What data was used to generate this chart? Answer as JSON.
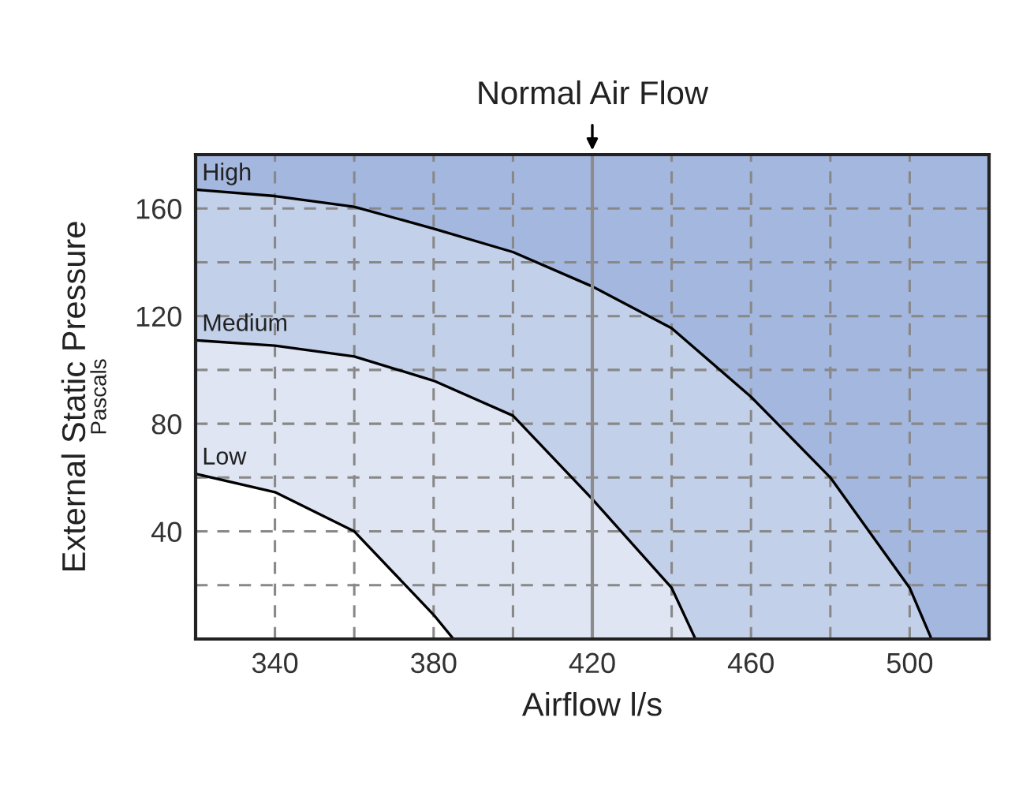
{
  "chart_data": {
    "type": "area",
    "xlabel": "Airflow l/s",
    "ylabel": "External Static Pressure\nPascals",
    "xlim": [
      320,
      520
    ],
    "ylim": [
      0,
      180
    ],
    "xticks": [
      {
        "value": 320,
        "label": null
      },
      340,
      {
        "value": 360,
        "label": null
      },
      380,
      {
        "value": 400,
        "label": null
      },
      420,
      {
        "value": 440,
        "label": null
      },
      460,
      {
        "value": 480,
        "label": null
      },
      500,
      {
        "value": 520,
        "label": null
      }
    ],
    "yticks": [
      {
        "value": 20,
        "label": null
      },
      40,
      {
        "value": 60,
        "label": null
      },
      80,
      {
        "value": 100,
        "label": null
      },
      120,
      {
        "value": 140,
        "label": null
      },
      160,
      {
        "value": 180,
        "label": null
      }
    ],
    "grid": true,
    "line_style": "solid",
    "marker": "none",
    "bands": [
      {
        "axis": "y",
        "from": 0,
        "to": 180,
        "color": "#a4b7df"
      }
    ],
    "ref_lines": [
      {
        "axis": "x",
        "value": 420,
        "label": "Normal Air Flow",
        "color": "#8c8c8c"
      }
    ],
    "series": [
      {
        "name": "High",
        "color": "#c3d0ea",
        "x": [
          320,
          340,
          360,
          380,
          400,
          420,
          440,
          460,
          480,
          500,
          505.5
        ],
        "values": [
          167,
          164.6,
          160.6,
          152.5,
          143.8,
          131,
          115.5,
          90,
          60,
          19,
          0
        ]
      },
      {
        "name": "Medium",
        "color": "#dfe5f3",
        "x": [
          320,
          340,
          360,
          380,
          400,
          420,
          440,
          446
        ],
        "values": [
          111,
          109,
          105,
          96,
          83,
          52,
          19,
          0
        ]
      },
      {
        "name": "Low",
        "color": "#ffffff",
        "x": [
          320,
          340,
          360,
          380,
          385
        ],
        "values": [
          61.4,
          54.6,
          40,
          9,
          0
        ]
      }
    ]
  }
}
